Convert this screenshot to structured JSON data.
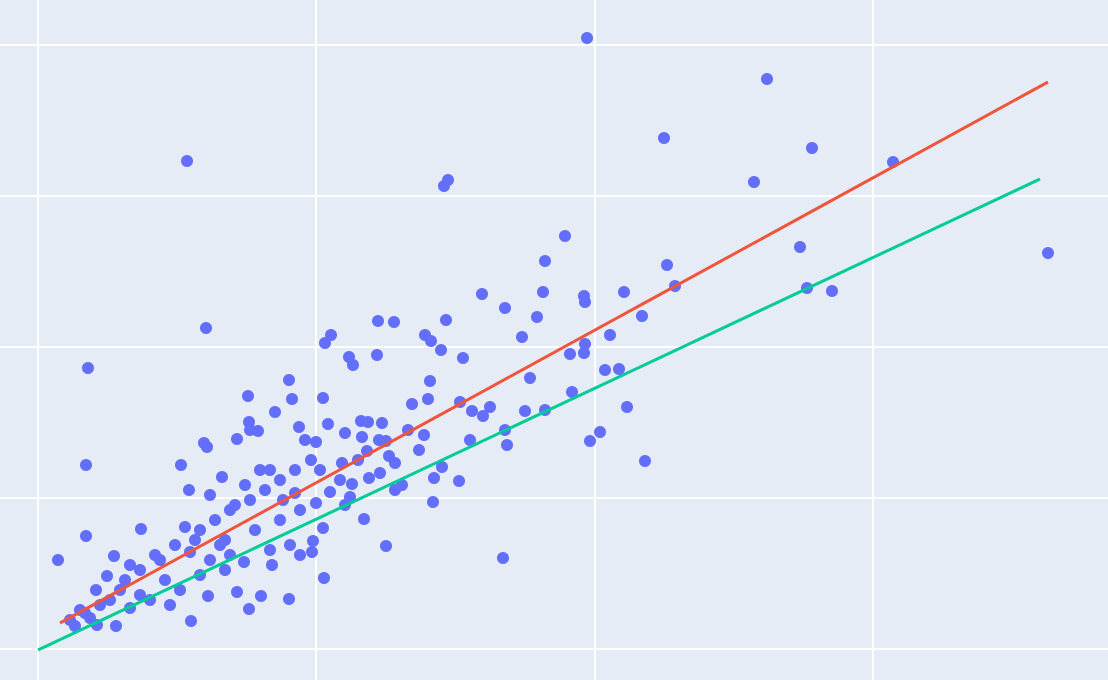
{
  "chart_data": {
    "type": "scatter",
    "xlim": [
      0,
      1108
    ],
    "ylim": [
      0,
      680
    ],
    "xticks": [
      38,
      316,
      595,
      873
    ],
    "yticks": [
      31,
      182,
      333,
      484,
      635
    ],
    "grid": true,
    "background": "#e5ecf6",
    "points": {
      "color": "#636efa",
      "x": [
        587,
        767,
        187,
        664,
        812,
        893,
        754,
        448,
        444,
        565,
        800,
        1048,
        667,
        545,
        206,
        88,
        482,
        505,
        543,
        584,
        585,
        624,
        675,
        807,
        832,
        642,
        537,
        522,
        378,
        394,
        446,
        331,
        325,
        425,
        431,
        441,
        349,
        353,
        377,
        463,
        570,
        584,
        585,
        610,
        605,
        619,
        530,
        572,
        430,
        289,
        248,
        292,
        323,
        412,
        428,
        460,
        472,
        483,
        490,
        525,
        545,
        627,
        275,
        249,
        250,
        258,
        237,
        204,
        207,
        299,
        328,
        361,
        368,
        382,
        408,
        424,
        470,
        505,
        507,
        590,
        600,
        645,
        86,
        181,
        305,
        316,
        345,
        362,
        379,
        386,
        367,
        389,
        311,
        342,
        358,
        395,
        419,
        442,
        459,
        434,
        503,
        386,
        433,
        395,
        402,
        352,
        330,
        323,
        313,
        312,
        324,
        289,
        249,
        191,
        86,
        58,
        141,
        114,
        107,
        96,
        80,
        70,
        75,
        90,
        100,
        116,
        130,
        150,
        170,
        180,
        208,
        237,
        261,
        272,
        244,
        225,
        210,
        190,
        160,
        140,
        125,
        110,
        85,
        97,
        200,
        215,
        230,
        250,
        265,
        280,
        295,
        270,
        245,
        222,
        210,
        189,
        185,
        195,
        225,
        255,
        280,
        300,
        290,
        270,
        300,
        260,
        235,
        220,
        175,
        155,
        130,
        120,
        140,
        165,
        200,
        230,
        283,
        316,
        345,
        364,
        350,
        320,
        340,
        369,
        380,
        295
      ],
      "values": [
        642,
        601,
        519,
        542,
        532,
        518,
        498,
        500,
        494,
        444,
        433,
        427,
        415,
        419,
        352,
        312,
        386,
        372,
        388,
        384,
        378,
        388,
        394,
        392,
        389,
        364,
        363,
        343,
        359,
        358,
        360,
        345,
        337,
        345,
        339,
        330,
        323,
        315,
        325,
        322,
        326,
        327,
        336,
        345,
        310,
        311,
        302,
        288,
        299,
        300,
        284,
        281,
        282,
        276,
        281,
        278,
        269,
        264,
        273,
        269,
        270,
        273,
        268,
        258,
        250,
        249,
        241,
        237,
        233,
        253,
        256,
        259,
        258,
        257,
        250,
        245,
        240,
        250,
        235,
        239,
        248,
        219,
        215,
        215,
        240,
        238,
        247,
        243,
        240,
        239,
        229,
        224,
        220,
        217,
        220,
        217,
        230,
        213,
        199,
        202,
        122,
        134,
        178,
        190,
        195,
        196,
        188,
        152,
        139,
        128,
        102,
        81,
        71,
        59,
        144,
        120,
        151,
        124,
        104,
        90,
        70,
        60,
        54,
        62,
        75,
        54,
        72,
        80,
        75,
        90,
        84,
        88,
        84,
        115,
        118,
        110,
        120,
        128,
        120,
        110,
        100,
        80,
        67,
        55,
        150,
        160,
        170,
        180,
        190,
        200,
        210,
        210,
        195,
        203,
        185,
        190,
        153,
        140,
        140,
        150,
        160,
        170,
        135,
        130,
        125,
        210,
        175,
        135,
        135,
        125,
        115,
        90,
        85,
        100,
        105,
        125,
        180,
        177,
        175,
        161,
        183,
        210,
        200,
        202,
        207,
        187
      ]
    },
    "lines": [
      {
        "color": "#ef553b",
        "x": [
          60,
          1048
        ],
        "values": [
          57,
          598
        ]
      },
      {
        "color": "#00cc96",
        "x": [
          38,
          1040
        ],
        "values": [
          30,
          501
        ]
      }
    ]
  }
}
